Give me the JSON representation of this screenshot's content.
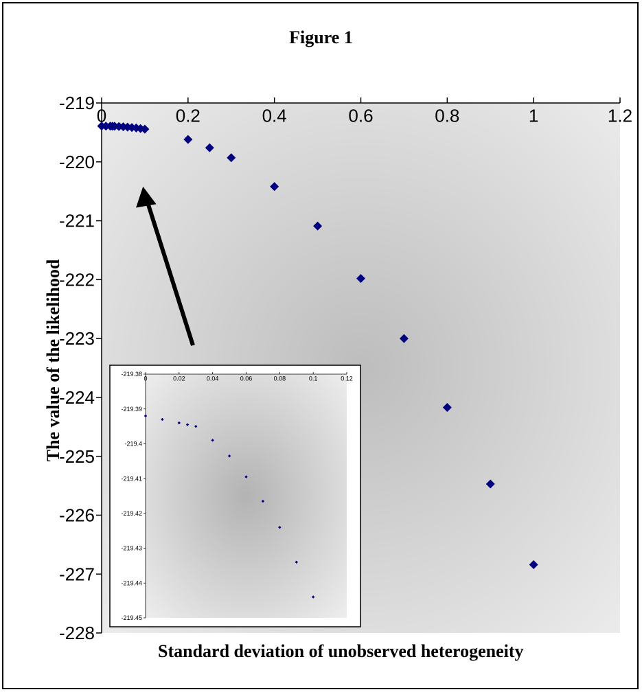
{
  "title": "Figure 1",
  "chart_data": [
    {
      "type": "scatter",
      "name": "main",
      "xlabel": "Standard deviation of unobserved heterogeneity",
      "ylabel": "The value of the likelihood",
      "xlim": [
        0,
        1.2
      ],
      "ylim": [
        -228,
        -219
      ],
      "x_axis_position": "top",
      "x_ticks": [
        "0",
        "0.2",
        "0.4",
        "0.6",
        "0.8",
        "1",
        "1.2"
      ],
      "y_ticks": [
        "-219",
        "-220",
        "-221",
        "-222",
        "-223",
        "-224",
        "-225",
        "-226",
        "-227",
        "-228"
      ],
      "marker_color": "#000080",
      "grid": false,
      "x": [
        0,
        0.01,
        0.02,
        0.025,
        0.03,
        0.04,
        0.05,
        0.06,
        0.07,
        0.08,
        0.09,
        0.1,
        0.2,
        0.25,
        0.3,
        0.4,
        0.5,
        0.6,
        0.7,
        0.8,
        0.9,
        1.0
      ],
      "y": [
        -219.392,
        -219.393,
        -219.394,
        -219.3945,
        -219.395,
        -219.399,
        -219.4035,
        -219.4095,
        -219.4165,
        -219.424,
        -219.434,
        -219.444,
        -219.62,
        -219.76,
        -219.93,
        -220.42,
        -221.09,
        -221.98,
        -223.0,
        -224.17,
        -225.47,
        -226.84
      ]
    },
    {
      "type": "scatter",
      "name": "inset",
      "xlim": [
        0,
        0.12
      ],
      "ylim": [
        -219.45,
        -219.38
      ],
      "x_axis_position": "top",
      "x_ticks": [
        "0",
        "0.02",
        "0.04",
        "0.06",
        "0.08",
        "0.1",
        "0.12"
      ],
      "y_ticks": [
        "-219.38",
        "-219.39",
        "-219.4",
        "-219.41",
        "-219.42",
        "-219.43",
        "-219.44",
        "-219.45"
      ],
      "marker_color": "#000080",
      "grid": false,
      "x": [
        0,
        0.01,
        0.02,
        0.025,
        0.03,
        0.04,
        0.05,
        0.06,
        0.07,
        0.08,
        0.09,
        0.1
      ],
      "y": [
        -219.392,
        -219.393,
        -219.394,
        -219.3945,
        -219.395,
        -219.399,
        -219.4035,
        -219.4095,
        -219.4165,
        -219.424,
        -219.434,
        -219.444
      ]
    }
  ]
}
